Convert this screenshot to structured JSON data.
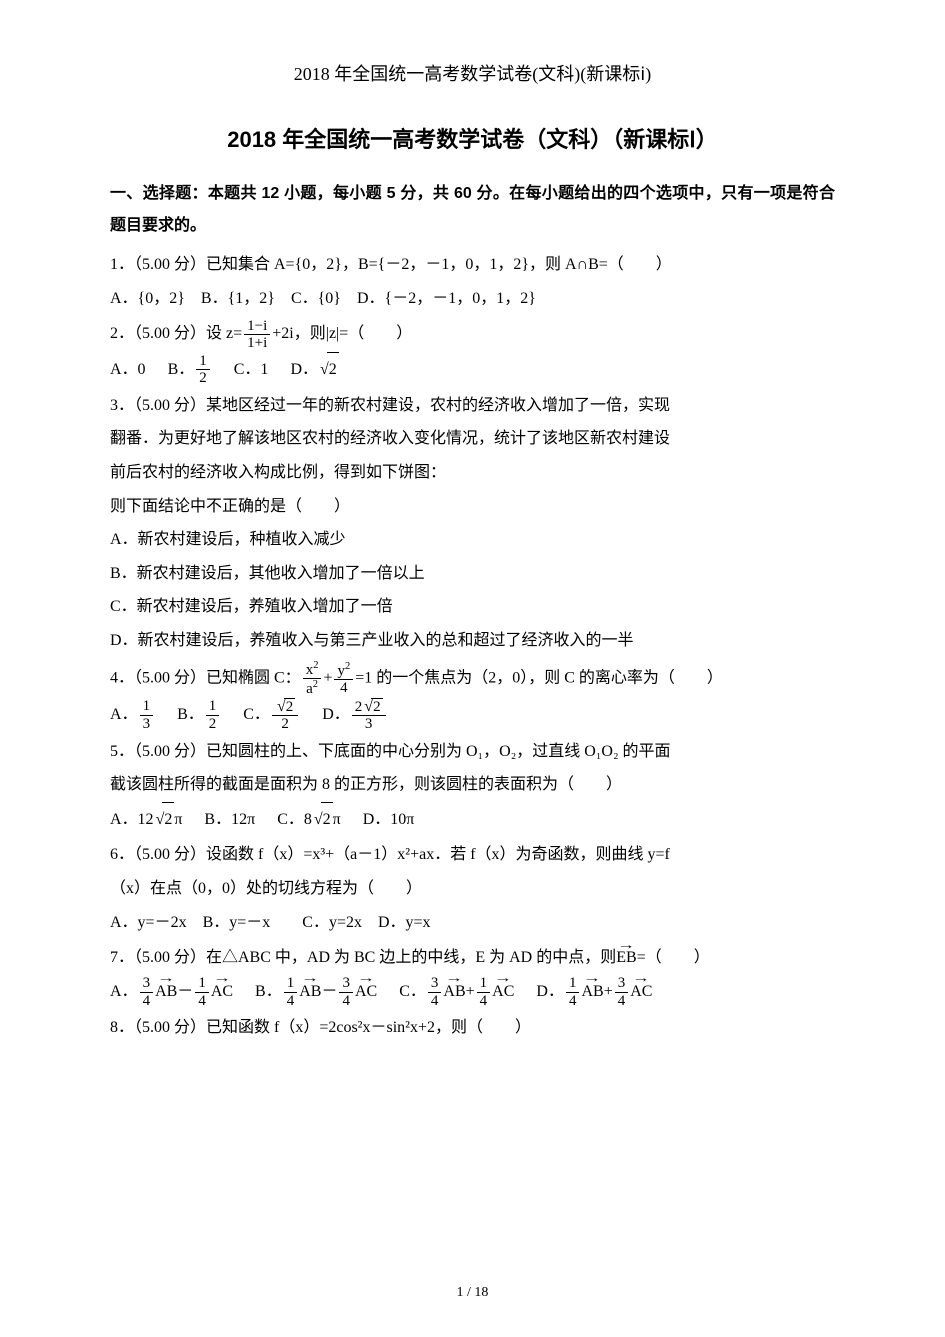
{
  "header": "2018 年全国统一高考数学试卷(文科)(新课标ⅰ)",
  "title": "2018 年全国统一高考数学试卷（文科）（新课标Ⅰ）",
  "section_heading": "一、选择题：本题共 12 小题，每小题 5 分，共 60 分。在每小题给出的四个选项中，只有一项是符合题目要求的。",
  "q1": {
    "stem": "1．（5.00 分）已知集合 A={0，2}，B={－2，－1，0，1，2}，则 A∩B=（　　）",
    "opts": "A．{0，2}　B．{1，2}　C．{0}　D．{－2，－1，0，1，2}"
  },
  "q2": {
    "stem_pre": "2．（5.00 分）设 z=",
    "frac_num": "1−i",
    "frac_den": "1+i",
    "stem_post": "+2i，则|z|=（　　）",
    "optA": "A．0",
    "optB_pre": "B．",
    "optB_num": "1",
    "optB_den": "2",
    "optC": "C．1",
    "optD_pre": "D．",
    "optD_rad": "2"
  },
  "q3": {
    "l1": "3．（5.00 分）某地区经过一年的新农村建设，农村的经济收入增加了一倍，实现",
    "l2": "翻番．为更好地了解该地区农村的经济收入变化情况，统计了该地区新农村建设",
    "l3": "前后农村的经济收入构成比例，得到如下饼图：",
    "l4": "则下面结论中不正确的是（　　）",
    "optA": "A．新农村建设后，种植收入减少",
    "optB": "B．新农村建设后，其他收入增加了一倍以上",
    "optC": "C．新农村建设后，养殖收入增加了一倍",
    "optD": "D．新农村建设后，养殖收入与第三产业收入的总和超过了经济收入的一半"
  },
  "q4": {
    "stem_pre": "4．（5.00 分）已知椭圆 C：",
    "t1n": "x",
    "t1d": "a",
    "plus": "+",
    "t2n": "y",
    "t2d": "4",
    "stem_post": "=1 的一个焦点为（2，0），则 C 的离心率为（　　）",
    "A_pre": "A．",
    "A_n": "1",
    "A_d": "3",
    "B_pre": "B．",
    "B_n": "1",
    "B_d": "2",
    "C_pre": "C．",
    "C_rad": "2",
    "C_d": "2",
    "D_pre": "D．",
    "D_coef": "2",
    "D_rad": "2",
    "D_d": "3"
  },
  "q5": {
    "l1": "5．（5.00 分）已知圆柱的上、下底面的中心分别为 O₁，O₂，过直线 O₁O₂ 的平面",
    "l2": "截该圆柱所得的截面是面积为 8 的正方形，则该圆柱的表面积为（　　）",
    "A_pre": "A．12",
    "A_rad": "2",
    "A_post": "π",
    "B": "B．12π",
    "C_pre": "C．8",
    "C_rad": "2",
    "C_post": "π",
    "D": "D．10π"
  },
  "q6": {
    "l1": "6．（5.00 分）设函数 f（x）=x³+（a－1）x²+ax．若 f（x）为奇函数，则曲线 y=f",
    "l2": "（x）在点（0，0）处的切线方程为（　　）",
    "opts": "A．y=－2x　B．y=－x　　C．y=2x　D．y=x"
  },
  "q7": {
    "stem_pre": "7．（5.00 分）在△ABC 中，AD 为 BC 边上的中线，E 为 AD 的中点，则",
    "vec": "EB",
    "stem_post": "=（　　）",
    "A_pre": "A．",
    "A1n": "3",
    "A1d": "4",
    "A1v": "AB",
    "A_mid": "－",
    "A2n": "1",
    "A2d": "4",
    "A2v": "AC",
    "B_pre": "B．",
    "B1n": "1",
    "B1d": "4",
    "B1v": "AB",
    "B_mid": "－",
    "B2n": "3",
    "B2d": "4",
    "B2v": "AC",
    "C_pre": "C．",
    "C1n": "3",
    "C1d": "4",
    "C1v": "AB",
    "C_mid": "+",
    "C2n": "1",
    "C2d": "4",
    "C2v": "AC",
    "D_pre": "D．",
    "D1n": "1",
    "D1d": "4",
    "D1v": "AB",
    "D_mid": "+",
    "D2n": "3",
    "D2d": "4",
    "D2v": "AC"
  },
  "q8": {
    "stem": "8．（5.00 分）已知函数 f（x）=2cos²x－sin²x+2，则（　　）"
  },
  "page_num": "1 / 18"
}
